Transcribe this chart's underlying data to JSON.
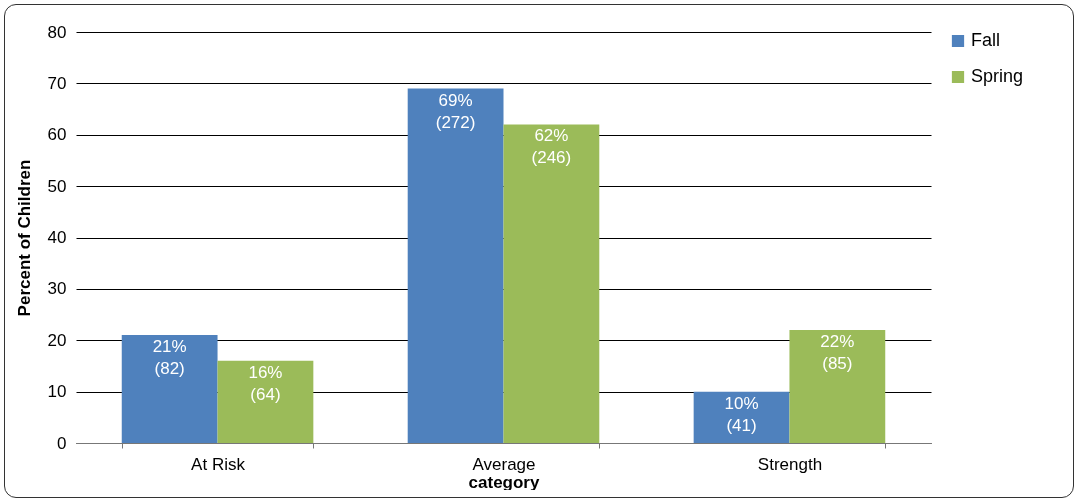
{
  "chart_data": {
    "type": "bar",
    "xlabel": "category",
    "ylabel": "Percent of Children",
    "categories": [
      "At Risk",
      "Average",
      "Strength"
    ],
    "series": [
      {
        "name": "Fall",
        "color": "#4f81bd",
        "values": [
          21,
          69,
          10
        ],
        "value_labels": [
          "21%\n(82)",
          "69%\n(272)",
          "10%\n(41)"
        ]
      },
      {
        "name": "Spring",
        "color": "#9bbb59",
        "values": [
          16,
          62,
          22
        ],
        "value_labels": [
          "16%\n(64)",
          "62%\n(246)",
          "22%\n(85)"
        ]
      }
    ],
    "ylim": [
      0,
      80
    ],
    "yticks": [
      0,
      10,
      20,
      30,
      40,
      50,
      60,
      70,
      80
    ],
    "grid": "y",
    "legend": "right"
  }
}
